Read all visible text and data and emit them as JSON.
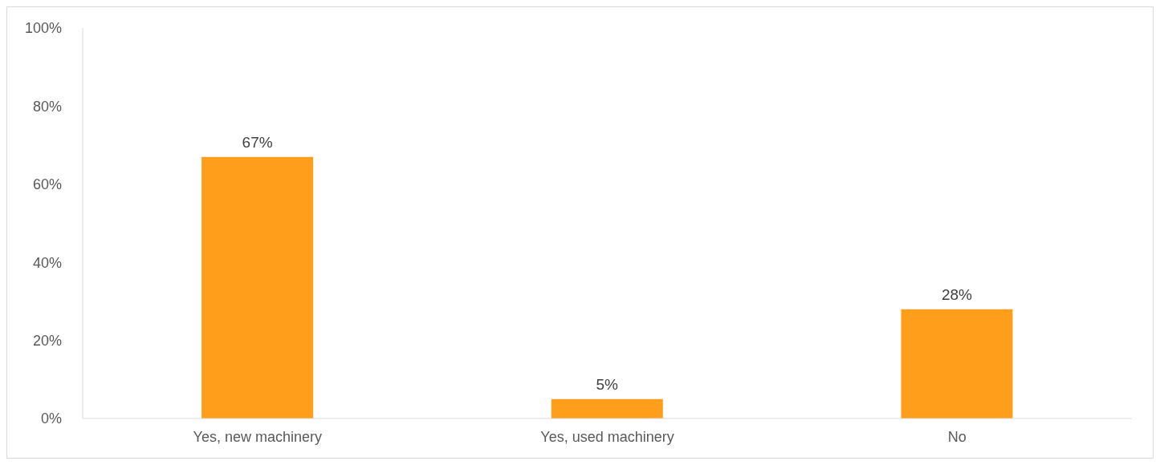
{
  "chart_data": {
    "type": "bar",
    "categories": [
      "Yes, new machinery",
      "Yes, used machinery",
      "No"
    ],
    "values": [
      67,
      5,
      28
    ],
    "value_labels": [
      "67%",
      "5%",
      "28%"
    ],
    "color": "#ff9e1b",
    "ylim": [
      0,
      100
    ],
    "yticks": [
      {
        "value": 0,
        "label": "0%"
      },
      {
        "value": 20,
        "label": "20%"
      },
      {
        "value": 40,
        "label": "40%"
      },
      {
        "value": 60,
        "label": "60%"
      },
      {
        "value": 80,
        "label": "80%"
      },
      {
        "value": 100,
        "label": "100%"
      }
    ],
    "grid": false,
    "legend": false
  }
}
